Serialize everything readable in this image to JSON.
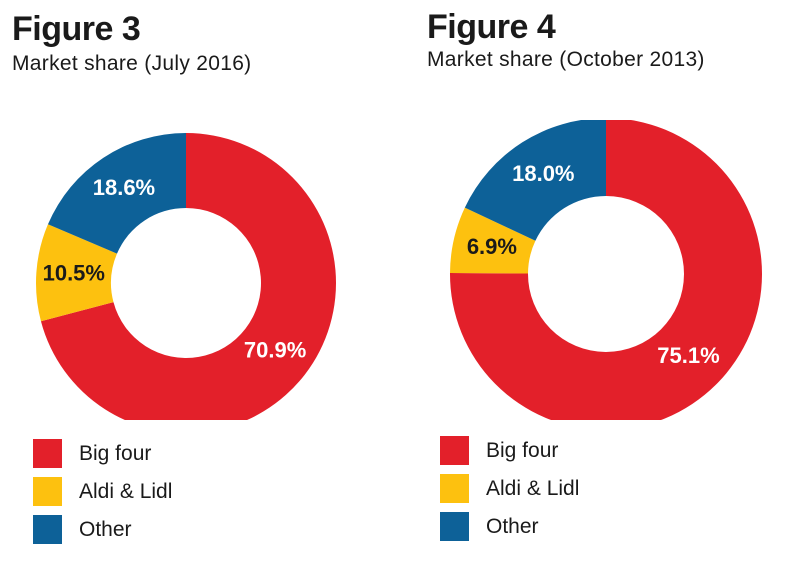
{
  "colors": {
    "big_four": "#e3202a",
    "aldi_lidl": "#fdc10f",
    "other": "#0d6198"
  },
  "chart_data": [
    {
      "type": "pie",
      "title": "Figure 3",
      "subtitle": "Market share (July 2016)",
      "categories": [
        "Big four",
        "Aldi & Lidl",
        "Other"
      ],
      "values": [
        70.9,
        10.5,
        18.6
      ],
      "value_labels": [
        "70.9%",
        "10.5%",
        "18.6%"
      ],
      "legend": "bottom-left"
    },
    {
      "type": "pie",
      "title": "Figure 4",
      "subtitle": "Market share (October 2013)",
      "categories": [
        "Big four",
        "Aldi & Lidl",
        "Other"
      ],
      "values": [
        75.1,
        6.9,
        18.0
      ],
      "value_labels": [
        "75.1%",
        "6.9%",
        "18.0%"
      ],
      "legend": "bottom-left"
    }
  ]
}
